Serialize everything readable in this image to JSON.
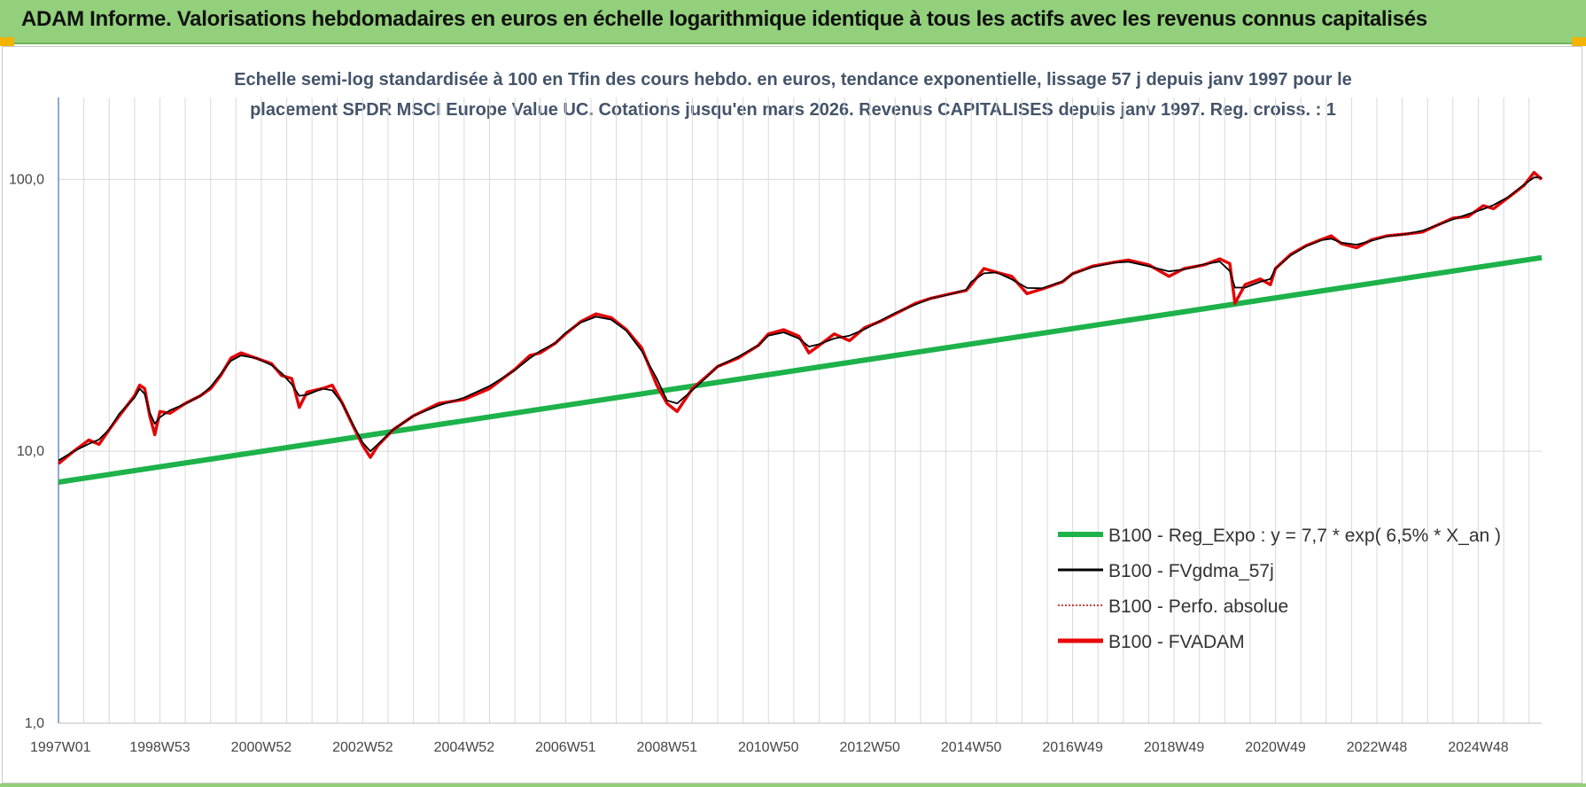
{
  "header": {
    "title": "ADAM Informe. Valorisations hebdomadaires en euros en échelle logarithmique identique à tous les actifs avec les revenus connus capitalisés"
  },
  "colors": {
    "header_bg": "#92d07b",
    "trend": "#1db24a",
    "smooth": "#000000",
    "perf": "#c00000",
    "fvadam": "#e8080a",
    "grid": "#d9d9d9"
  },
  "chart_data": {
    "type": "line",
    "title_lines": [
      "Echelle semi-log standardisée à 100 en Tfin des cours hebdo. en euros, tendance exponentielle, lissage 57 j depuis janv 1997 pour le",
      "placement SPDR MSCI Europe Value UC. Cotations jusqu'en mars 2026. Revenus CAPITALISES depuis janv 1997. Reg. croiss. : 1"
    ],
    "y_scale": "log",
    "ylim": [
      1,
      200
    ],
    "xlim": [
      1997.0,
      2026.25
    ],
    "y_ticks": [
      {
        "value": 100,
        "label": "100,0"
      },
      {
        "value": 10,
        "label": "10,0"
      },
      {
        "value": 1,
        "label": "1,0"
      }
    ],
    "x_ticks": [
      {
        "value": 1997.0,
        "label": "1997W01"
      },
      {
        "value": 1999.0,
        "label": "1998W53"
      },
      {
        "value": 2001.0,
        "label": "2000W52"
      },
      {
        "value": 2003.0,
        "label": "2002W52"
      },
      {
        "value": 2005.0,
        "label": "2004W52"
      },
      {
        "value": 2007.0,
        "label": "2006W51"
      },
      {
        "value": 2009.0,
        "label": "2008W51"
      },
      {
        "value": 2011.0,
        "label": "2010W50"
      },
      {
        "value": 2013.0,
        "label": "2012W50"
      },
      {
        "value": 2015.0,
        "label": "2014W50"
      },
      {
        "value": 2017.0,
        "label": "2016W49"
      },
      {
        "value": 2019.0,
        "label": "2018W49"
      },
      {
        "value": 2021.0,
        "label": "2020W49"
      },
      {
        "value": 2023.0,
        "label": "2022W48"
      },
      {
        "value": 2025.0,
        "label": "2024W48"
      }
    ],
    "grid": true,
    "legend_position": "bottom-right",
    "trend": {
      "a": 7.7,
      "rate": 0.065,
      "start": 1997.0
    },
    "series": [
      {
        "key": "trend",
        "name": "B100 - Reg_Expo : y = 7,7 * exp( 6,5% *  X_an )",
        "style": "thick"
      },
      {
        "key": "smooth",
        "name": "B100 - FVgdma_57j",
        "style": "thin"
      },
      {
        "key": "perf",
        "name": "B100 - Perfo. absolue",
        "style": "dotted"
      },
      {
        "key": "fvadam",
        "name": "B100 - FVADAM",
        "style": "medium"
      }
    ],
    "fvadam_points": [
      [
        1997.0,
        9.0
      ],
      [
        1997.3,
        10.0
      ],
      [
        1997.6,
        11.0
      ],
      [
        1997.8,
        10.6
      ],
      [
        1998.0,
        12.0
      ],
      [
        1998.2,
        13.5
      ],
      [
        1998.5,
        16.0
      ],
      [
        1998.6,
        17.5
      ],
      [
        1998.7,
        17.0
      ],
      [
        1998.8,
        13.5
      ],
      [
        1998.9,
        11.5
      ],
      [
        1999.0,
        14.0
      ],
      [
        1999.2,
        13.8
      ],
      [
        1999.5,
        15.0
      ],
      [
        1999.8,
        16.0
      ],
      [
        2000.0,
        17.0
      ],
      [
        2000.2,
        19.0
      ],
      [
        2000.4,
        22.0
      ],
      [
        2000.6,
        23.0
      ],
      [
        2000.9,
        22.0
      ],
      [
        2001.2,
        21.0
      ],
      [
        2001.4,
        19.0
      ],
      [
        2001.6,
        18.5
      ],
      [
        2001.75,
        14.5
      ],
      [
        2001.9,
        16.5
      ],
      [
        2002.2,
        17.0
      ],
      [
        2002.4,
        17.5
      ],
      [
        2002.6,
        15.0
      ],
      [
        2002.8,
        12.5
      ],
      [
        2003.0,
        10.5
      ],
      [
        2003.15,
        9.5
      ],
      [
        2003.3,
        10.5
      ],
      [
        2003.6,
        12.0
      ],
      [
        2004.0,
        13.5
      ],
      [
        2004.5,
        15.0
      ],
      [
        2005.0,
        15.5
      ],
      [
        2005.5,
        17.0
      ],
      [
        2006.0,
        20.0
      ],
      [
        2006.3,
        22.5
      ],
      [
        2006.5,
        23.0
      ],
      [
        2006.8,
        25.0
      ],
      [
        2007.0,
        27.0
      ],
      [
        2007.3,
        30.0
      ],
      [
        2007.6,
        32.0
      ],
      [
        2007.9,
        31.0
      ],
      [
        2008.2,
        28.0
      ],
      [
        2008.5,
        24.0
      ],
      [
        2008.8,
        17.5
      ],
      [
        2009.0,
        15.0
      ],
      [
        2009.2,
        14.0
      ],
      [
        2009.5,
        17.0
      ],
      [
        2009.8,
        19.0
      ],
      [
        2010.0,
        20.5
      ],
      [
        2010.4,
        22.0
      ],
      [
        2010.8,
        24.5
      ],
      [
        2011.0,
        27.0
      ],
      [
        2011.3,
        28.0
      ],
      [
        2011.6,
        26.5
      ],
      [
        2011.8,
        23.0
      ],
      [
        2012.0,
        24.5
      ],
      [
        2012.3,
        27.0
      ],
      [
        2012.6,
        25.5
      ],
      [
        2012.9,
        28.5
      ],
      [
        2013.2,
        30.0
      ],
      [
        2013.5,
        32.0
      ],
      [
        2013.9,
        35.0
      ],
      [
        2014.2,
        36.5
      ],
      [
        2014.6,
        38.0
      ],
      [
        2014.9,
        39.0
      ],
      [
        2015.0,
        41.0
      ],
      [
        2015.25,
        47.0
      ],
      [
        2015.5,
        45.5
      ],
      [
        2015.8,
        44.0
      ],
      [
        2016.1,
        38.0
      ],
      [
        2016.4,
        39.5
      ],
      [
        2016.8,
        42.0
      ],
      [
        2017.0,
        45.0
      ],
      [
        2017.4,
        48.0
      ],
      [
        2017.8,
        49.5
      ],
      [
        2018.1,
        50.5
      ],
      [
        2018.5,
        48.5
      ],
      [
        2018.9,
        44.0
      ],
      [
        2019.2,
        47.0
      ],
      [
        2019.6,
        48.5
      ],
      [
        2019.9,
        51.0
      ],
      [
        2020.1,
        49.0
      ],
      [
        2020.2,
        35.0
      ],
      [
        2020.4,
        41.0
      ],
      [
        2020.7,
        43.0
      ],
      [
        2020.9,
        41.0
      ],
      [
        2021.0,
        47.0
      ],
      [
        2021.3,
        53.0
      ],
      [
        2021.6,
        57.0
      ],
      [
        2021.9,
        60.0
      ],
      [
        2022.1,
        62.0
      ],
      [
        2022.3,
        58.0
      ],
      [
        2022.6,
        56.0
      ],
      [
        2022.9,
        60.0
      ],
      [
        2023.2,
        62.0
      ],
      [
        2023.6,
        63.0
      ],
      [
        2023.9,
        64.0
      ],
      [
        2024.2,
        68.0
      ],
      [
        2024.5,
        72.0
      ],
      [
        2024.8,
        73.0
      ],
      [
        2025.1,
        80.0
      ],
      [
        2025.3,
        78.0
      ],
      [
        2025.6,
        86.0
      ],
      [
        2025.9,
        95.0
      ],
      [
        2026.1,
        106.0
      ],
      [
        2026.25,
        100.0
      ]
    ]
  }
}
